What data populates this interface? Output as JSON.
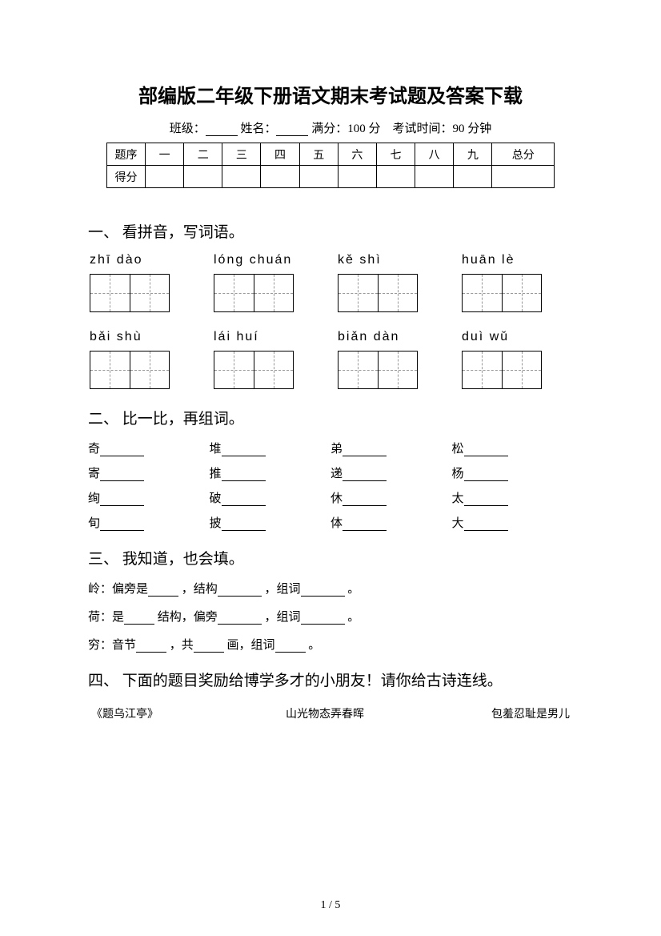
{
  "title": "部编版二年级下册语文期末考试题及答案下载",
  "info": {
    "class_label": "班级：",
    "name_label": "姓名：",
    "full_score_label": "满分：",
    "full_score_value": "100 分",
    "time_label": "考试时间：",
    "time_value": "90 分钟"
  },
  "score_table": {
    "row1": [
      "题序",
      "一",
      "二",
      "三",
      "四",
      "五",
      "六",
      "七",
      "八",
      "九",
      "总分"
    ],
    "row2_label": "得分"
  },
  "q1": {
    "heading": "一、 看拼音，写词语。",
    "row1": [
      "zhī    dào",
      "lóng chuán",
      "kě   shì",
      "huān   lè"
    ],
    "row2": [
      "bǎi    shù",
      "lái    huí",
      "biǎn  dàn",
      "duì    wǔ"
    ]
  },
  "q2": {
    "heading": "二、 比一比，再组词。",
    "items": [
      [
        "奇",
        "堆",
        "弟",
        "松"
      ],
      [
        "寄",
        "推",
        "递",
        "杨"
      ],
      [
        "绚",
        "破",
        "休",
        "太"
      ],
      [
        "旬",
        "披",
        "体",
        "大"
      ]
    ]
  },
  "q3": {
    "heading": "三、 我知道，也会填。",
    "lines": [
      {
        "pre": "岭：偏旁是",
        "mid1": "，结构",
        "mid2": "，组词",
        "end": "。"
      },
      {
        "pre": "荷：是",
        "mid1": "结构，偏旁",
        "mid2": "，组词",
        "end": "。"
      },
      {
        "pre": "穷：音节",
        "mid1": "，共",
        "mid2": "画，组词",
        "end": "。"
      }
    ]
  },
  "q4": {
    "heading": "四、 下面的题目奖励给博学多才的小朋友！请你给古诗连线。",
    "cols": [
      "《题乌江亭》",
      "山光物态弄春晖",
      "包羞忍耻是男儿"
    ]
  },
  "page": "1 / 5"
}
